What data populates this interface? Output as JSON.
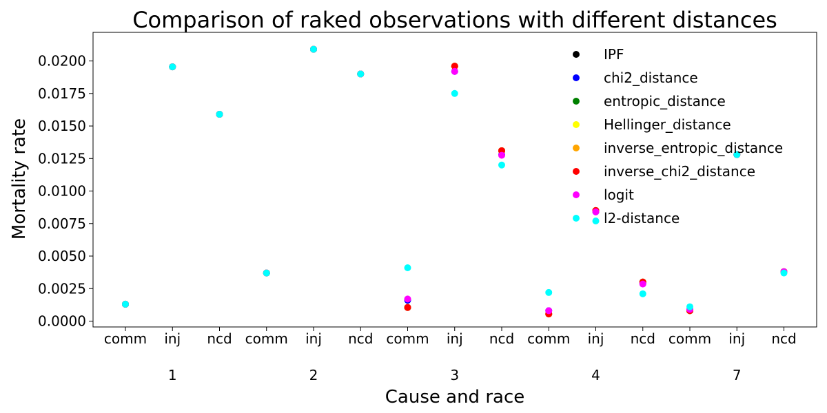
{
  "chart_data": {
    "type": "scatter",
    "title": "Comparison of raked observations with different distances",
    "xlabel": "Cause and race",
    "ylabel": "Mortality rate",
    "ylim": [
      -0.00045,
      0.0222
    ],
    "yticks": [
      "0.0000",
      "0.0025",
      "0.0050",
      "0.0075",
      "0.0100",
      "0.0125",
      "0.0150",
      "0.0175",
      "0.0200"
    ],
    "y_tick_values": [
      0,
      0.0025,
      0.005,
      0.0075,
      0.01,
      0.0125,
      0.015,
      0.0175,
      0.02
    ],
    "causes": [
      "comm",
      "inj",
      "ncd",
      "comm",
      "inj",
      "ncd",
      "comm",
      "inj",
      "ncd",
      "comm",
      "inj",
      "ncd",
      "comm",
      "inj",
      "ncd"
    ],
    "races": [
      "1",
      "2",
      "3",
      "4",
      "7"
    ],
    "grid": false,
    "legend_position": "upper-right",
    "series": [
      {
        "name": "IPF",
        "color": "#000000",
        "values": [
          0.0013,
          0.01955,
          0.0159,
          0.0037,
          0.0209,
          0.019,
          0.00105,
          0.0196,
          0.0131,
          0.00055,
          0.0085,
          0.003,
          0.0008,
          0.0128,
          0.0038
        ]
      },
      {
        "name": "chi2_distance",
        "color": "#0000ff",
        "values": [
          0.0013,
          0.01955,
          0.0159,
          0.0037,
          0.0209,
          0.019,
          0.0016,
          0.0192,
          0.0128,
          0.0008,
          0.0084,
          0.0029,
          0.0009,
          0.0128,
          0.0038
        ]
      },
      {
        "name": "entropic_distance",
        "color": "#008000",
        "values": [
          0.0013,
          0.01955,
          0.0159,
          0.0037,
          0.0209,
          0.019,
          0.00105,
          0.0196,
          0.0131,
          0.00055,
          0.0085,
          0.003,
          0.0008,
          0.0128,
          0.0038
        ]
      },
      {
        "name": "Hellinger_distance",
        "color": "#ffff00",
        "values": [
          0.0013,
          0.01955,
          0.0159,
          0.0037,
          0.0209,
          0.019,
          0.00105,
          0.0196,
          0.0131,
          0.00055,
          0.0085,
          0.003,
          0.0008,
          0.0128,
          0.0038
        ]
      },
      {
        "name": "inverse_entropic_distance",
        "color": "#ffa500",
        "values": [
          0.0013,
          0.01955,
          0.0159,
          0.0037,
          0.0209,
          0.019,
          0.00105,
          0.0196,
          0.0131,
          0.00055,
          0.0085,
          0.003,
          0.0008,
          0.0128,
          0.0038
        ]
      },
      {
        "name": "inverse_chi2_distance",
        "color": "#ff0000",
        "values": [
          0.0013,
          0.01955,
          0.0159,
          0.0037,
          0.0209,
          0.019,
          0.00105,
          0.0196,
          0.0131,
          0.00055,
          0.0085,
          0.003,
          0.0008,
          0.0128,
          0.0038
        ]
      },
      {
        "name": "logit",
        "color": "#ff00ff",
        "values": [
          0.0013,
          0.01955,
          0.0159,
          0.0037,
          0.0209,
          0.019,
          0.0017,
          0.0192,
          0.01275,
          0.0008,
          0.0084,
          0.00285,
          0.0009,
          0.0128,
          0.0038
        ]
      },
      {
        "name": "l2-distance",
        "color": "#00ffff",
        "values": [
          0.0013,
          0.01955,
          0.0159,
          0.0037,
          0.0209,
          0.019,
          0.0041,
          0.0175,
          0.012,
          0.0022,
          0.0077,
          0.0021,
          0.0011,
          0.0128,
          0.0037
        ]
      }
    ]
  }
}
